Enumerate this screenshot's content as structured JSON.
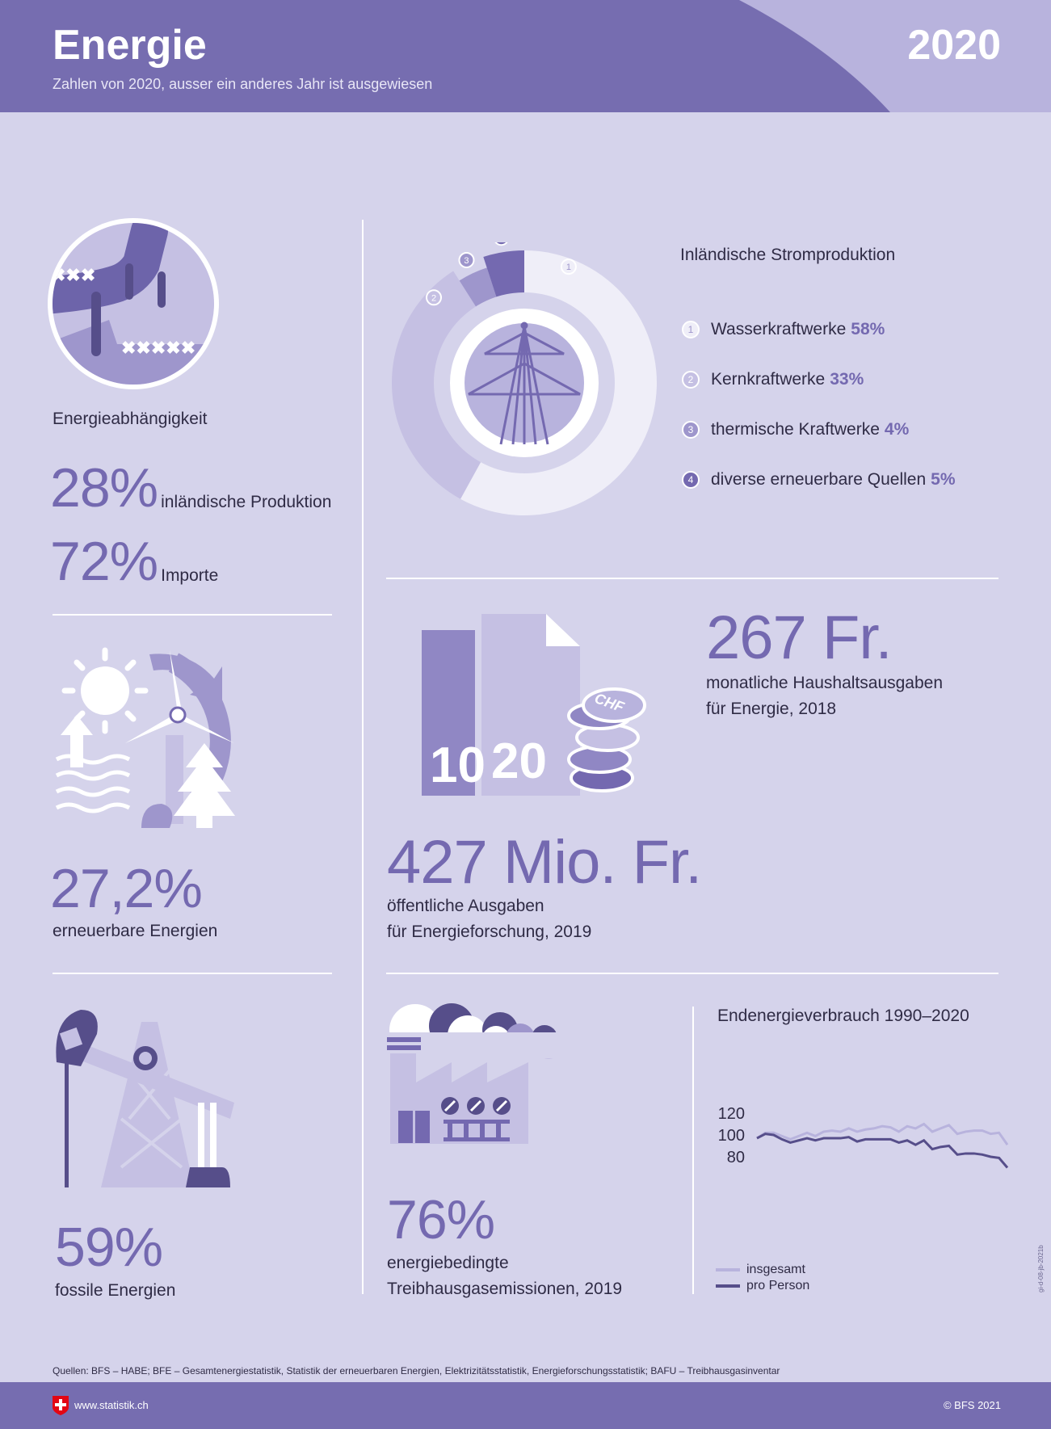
{
  "header": {
    "title": "Energie",
    "subtitle": "Zahlen von 2020, ausser ein anderes Jahr ist ausgewiesen",
    "year": "2020"
  },
  "colors": {
    "header": "#766db0",
    "header_light": "#b8b3dd",
    "background": "#d5d3eb",
    "accent": "#7469b0",
    "dark": "#564e8a"
  },
  "dependency": {
    "icon": "pipeline-icon",
    "label": "Energieabhängigkeit",
    "domestic_value": "28%",
    "domestic_label": "inländische Produktion",
    "import_value": "72%",
    "import_label": "Importe"
  },
  "renewable": {
    "icon": "renewable-energy-icon",
    "value": "27,2%",
    "label": "erneuerbare Energien"
  },
  "fossil": {
    "icon": "oil-pump-icon",
    "value": "59%",
    "label": "fossile Energien"
  },
  "household": {
    "icon": "bills-coins-icon",
    "bill_text_1": "10",
    "bill_text_2": "20",
    "coin_text": "CHF",
    "value": "267 Fr.",
    "line1": "monatliche Haushaltsausgaben",
    "line2": "für Energie, 2018"
  },
  "research": {
    "value": "427 Mio. Fr.",
    "line1": "öffentliche Ausgaben",
    "line2": "für Energieforschung, 2019"
  },
  "emissions": {
    "icon": "factory-icon",
    "value": "76%",
    "line1": "energiebedingte",
    "line2": "Treibhausgasemissionen, 2019"
  },
  "chart_data": [
    {
      "type": "pie",
      "title": "Inländische Stromproduktion",
      "categories": [
        "Wasserkraftwerke",
        "Kernkraftwerke",
        "thermische Kraftwerke",
        "diverse erneuerbare Quellen"
      ],
      "numbers": [
        "1",
        "2",
        "3",
        "4"
      ],
      "values": [
        58,
        33,
        4,
        5
      ],
      "labels": [
        "58%",
        "33%",
        "4%",
        "5%"
      ],
      "colors": [
        "#efeef8",
        "#c5c0e3",
        "#9e96cc",
        "#7469b0"
      ],
      "center_icon": "power-pylon-icon"
    },
    {
      "type": "line",
      "title": "Endenergieverbrauch 1990–2020",
      "x": [
        1990,
        1991,
        1992,
        1993,
        1994,
        1995,
        1996,
        1997,
        1998,
        1999,
        2000,
        2001,
        2002,
        2003,
        2004,
        2005,
        2006,
        2007,
        2008,
        2009,
        2010,
        2011,
        2012,
        2013,
        2014,
        2015,
        2016,
        2017,
        2018,
        2019,
        2020
      ],
      "yticks": [
        "120",
        "100",
        "80"
      ],
      "ylim": [
        60,
        130
      ],
      "grid": false,
      "legend": "bottom-left",
      "series": [
        {
          "name": "insgesamt",
          "color": "#b8b3dd",
          "values": [
            97,
            102,
            102,
            99,
            96,
            99,
            102,
            99,
            103,
            104,
            103,
            106,
            103,
            105,
            106,
            108,
            107,
            103,
            108,
            106,
            110,
            103,
            106,
            109,
            101,
            103,
            104,
            104,
            101,
            102,
            91
          ]
        },
        {
          "name": "pro Person",
          "color": "#564e8a",
          "values": [
            97,
            101,
            100,
            96,
            93,
            95,
            97,
            95,
            97,
            97,
            97,
            98,
            94,
            96,
            96,
            96,
            96,
            93,
            95,
            91,
            95,
            87,
            89,
            90,
            82,
            83,
            83,
            82,
            80,
            79,
            70
          ]
        }
      ]
    }
  ],
  "footer": {
    "sources": "Quellen: BFS – HABE; BFE – Gesamtenergiestatistik, Statistik der erneuerbaren Energien, Elektrizitätsstatistik, Energieforschungsstatistik; BAFU – Treibhausgasinventar",
    "website": "www.statistik.ch",
    "copyright": "© BFS 2021",
    "code": "gi-d-08-jb-2021b",
    "logo": "swiss-cross-icon"
  }
}
